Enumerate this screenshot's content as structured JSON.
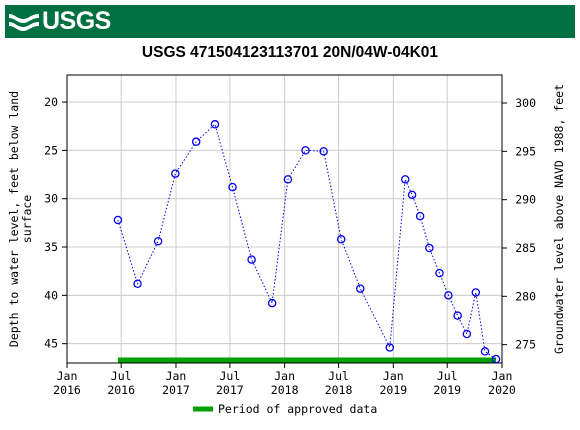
{
  "header": {
    "agency": "USGS"
  },
  "chart_data": {
    "type": "scatter",
    "title": "USGS 471504123113701 20N/04W-04K01",
    "ylabel_left_lines": [
      "Depth to water level, feet below land",
      "surface"
    ],
    "ylabel_right": "Groundwater level above NAVD 1988, feet",
    "ylim_left": [
      47,
      17.2
    ],
    "yticks_left": [
      20,
      25,
      30,
      35,
      40,
      45
    ],
    "yticks_right": [
      300,
      295,
      290,
      285,
      280,
      275
    ],
    "right_axis_offset": 320.1,
    "x_ticks": [
      {
        "date": "2016-01-01",
        "label1": "Jan",
        "label2": "2016"
      },
      {
        "date": "2016-07-01",
        "label1": "Jul",
        "label2": "2016"
      },
      {
        "date": "2017-01-01",
        "label1": "Jan",
        "label2": "2017"
      },
      {
        "date": "2017-07-01",
        "label1": "Jul",
        "label2": "2017"
      },
      {
        "date": "2018-01-01",
        "label1": "Jan",
        "label2": "2018"
      },
      {
        "date": "2018-07-01",
        "label1": "Jul",
        "label2": "2018"
      },
      {
        "date": "2019-01-01",
        "label1": "Jan",
        "label2": "2019"
      },
      {
        "date": "2019-07-01",
        "label1": "Jul",
        "label2": "2019"
      },
      {
        "date": "2020-01-01",
        "label1": "Jan",
        "label2": "2020"
      }
    ],
    "xlim": [
      "2016-01-01",
      "2020-01-01"
    ],
    "series": [
      {
        "points": [
          {
            "x": "2016-06-20",
            "y": 32.2
          },
          {
            "x": "2016-08-25",
            "y": 38.8
          },
          {
            "x": "2016-11-02",
            "y": 34.4
          },
          {
            "x": "2016-12-30",
            "y": 27.4
          },
          {
            "x": "2017-03-10",
            "y": 24.1
          },
          {
            "x": "2017-05-12",
            "y": 22.3
          },
          {
            "x": "2017-07-10",
            "y": 28.8
          },
          {
            "x": "2017-09-12",
            "y": 36.3
          },
          {
            "x": "2017-11-20",
            "y": 40.8
          },
          {
            "x": "2018-01-12",
            "y": 28.0
          },
          {
            "x": "2018-03-12",
            "y": 25.0
          },
          {
            "x": "2018-05-12",
            "y": 25.1
          },
          {
            "x": "2018-07-10",
            "y": 34.2
          },
          {
            "x": "2018-09-12",
            "y": 39.3
          },
          {
            "x": "2018-12-20",
            "y": 45.4
          },
          {
            "x": "2019-02-10",
            "y": 28.0
          },
          {
            "x": "2019-03-05",
            "y": 29.6
          },
          {
            "x": "2019-04-01",
            "y": 31.8
          },
          {
            "x": "2019-05-02",
            "y": 35.1
          },
          {
            "x": "2019-06-05",
            "y": 37.7
          },
          {
            "x": "2019-07-05",
            "y": 40.0
          },
          {
            "x": "2019-08-05",
            "y": 42.1
          },
          {
            "x": "2019-09-05",
            "y": 44.0
          },
          {
            "x": "2019-10-05",
            "y": 39.7
          },
          {
            "x": "2019-11-05",
            "y": 45.8
          },
          {
            "x": "2019-12-12",
            "y": 46.6
          }
        ]
      }
    ],
    "approved_period": {
      "start": "2016-06-20",
      "end": "2019-12-12"
    },
    "legend": {
      "label": "Period of approved data",
      "placement": "bottom"
    },
    "grid": true,
    "colors": {
      "banner": "#006f41",
      "points": "#0000ee",
      "approved": "#00a000",
      "grid": "#cccccc"
    }
  }
}
